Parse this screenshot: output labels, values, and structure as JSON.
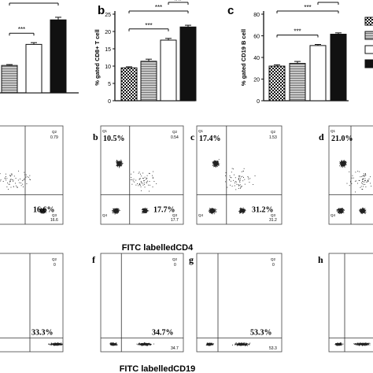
{
  "chart_data": [
    {
      "type": "bar",
      "panel_letter": "",
      "ylabel": "",
      "ylim": [
        0,
        30
      ],
      "yticks": [],
      "bars": [
        {
          "fill": "gray-stripe",
          "value": 9.5,
          "err": 0.3
        },
        {
          "fill": "white",
          "value": 16.8,
          "err": 0.6
        },
        {
          "fill": "black",
          "value": 25.3,
          "err": 0.9
        }
      ],
      "significance": [
        {
          "from": 0,
          "to": 1,
          "label": "***"
        },
        {
          "from": 0,
          "to": 2,
          "label": "***"
        },
        {
          "from": 1,
          "to": 2,
          "label": "**"
        }
      ]
    },
    {
      "type": "bar",
      "panel_letter": "b",
      "ylabel": "% gated CD8+ T cell",
      "ylim": [
        0,
        25
      ],
      "yticks": [
        0,
        5,
        10,
        15,
        20,
        25
      ],
      "bars": [
        {
          "fill": "checker",
          "value": 9.5,
          "err": 0.3
        },
        {
          "fill": "gray-stripe",
          "value": 11.4,
          "err": 0.6
        },
        {
          "fill": "white",
          "value": 17.5,
          "err": 0.5
        },
        {
          "fill": "black",
          "value": 21.3,
          "err": 0.5
        }
      ],
      "significance": [
        {
          "from": 0,
          "to": 2,
          "label": "***"
        },
        {
          "from": 0,
          "to": 3,
          "label": "***"
        },
        {
          "from": 2,
          "to": 3,
          "label": "##"
        }
      ]
    },
    {
      "type": "bar",
      "panel_letter": "c",
      "ylabel": "% gated CD19 B cell",
      "ylim": [
        0,
        80
      ],
      "yticks": [
        0,
        20,
        40,
        60,
        80
      ],
      "bars": [
        {
          "fill": "checker",
          "value": 32,
          "err": 1.2
        },
        {
          "fill": "gray-stripe",
          "value": 34.5,
          "err": 1.8
        },
        {
          "fill": "white",
          "value": 51,
          "err": 1.0
        },
        {
          "fill": "black",
          "value": 61.5,
          "err": 1.2
        }
      ],
      "significance": [
        {
          "from": 0,
          "to": 2,
          "label": "***"
        },
        {
          "from": 0,
          "to": 3,
          "label": "***"
        },
        {
          "from": 2,
          "to": 3,
          "label": "**"
        }
      ]
    }
  ],
  "legend_swatches": [
    "checker",
    "gray-stripe",
    "white",
    "black"
  ],
  "flow_cd4": [
    {
      "letter": "",
      "q1_pct": "",
      "q3_pct": "16.6%",
      "q2_label": "Q2",
      "q2_value": "0.79",
      "q3_label": "Q3",
      "q3_value": "16.6",
      "q1_label": "",
      "q4_label": ""
    },
    {
      "letter": "b",
      "q1_pct": "10.5%",
      "q3_pct": "17.7%",
      "q2_label": "Q2",
      "q2_value": "0.54",
      "q3_label": "Q3",
      "q3_value": "17.7",
      "q1_label": "Q1",
      "q4_label": "Q4"
    },
    {
      "letter": "c",
      "q1_pct": "17.4%",
      "q3_pct": "31.2%",
      "q2_label": "Q2",
      "q2_value": "1.53",
      "q3_label": "Q3",
      "q3_value": "31.2",
      "q1_label": "Q1",
      "q4_label": "Q4"
    },
    {
      "letter": "d",
      "q1_pct": "21.0%",
      "q3_pct": "",
      "q2_label": "",
      "q2_value": "",
      "q3_label": "",
      "q3_value": "",
      "q1_label": "Q1",
      "q4_label": "Q4"
    }
  ],
  "flow_cd19": [
    {
      "letter": "",
      "q3_pct": "33.3%",
      "q2_label": "Q2",
      "q2_value": "0",
      "q3_value": ""
    },
    {
      "letter": "f",
      "q3_pct": "34.7%",
      "q2_label": "Q2",
      "q2_value": "0",
      "q3_value": "34.7"
    },
    {
      "letter": "g",
      "q3_pct": "53.3%",
      "q2_label": "Q2",
      "q2_value": "0",
      "q3_value": "53.3"
    },
    {
      "letter": "h",
      "q3_pct": "",
      "q2_label": "",
      "q2_value": "",
      "q3_value": ""
    }
  ],
  "axis_labels": {
    "cd4_x": "FITC labelledCD4",
    "cd19_x": "FITC labelledCD19"
  },
  "colors": {
    "ink": "#111111",
    "stripe_gray": "#9a9a9a",
    "dot": "#222222"
  }
}
